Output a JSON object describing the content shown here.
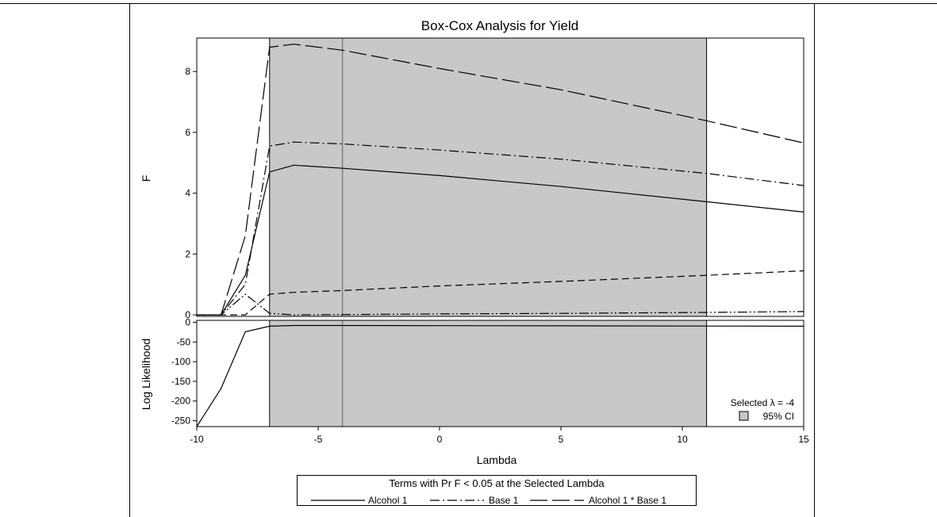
{
  "chart_data": {
    "type": "line",
    "title": "Box-Cox Analysis for Yield",
    "xlabel": "Lambda",
    "xlim": [
      -10,
      15
    ],
    "x_ticks": [
      -10,
      -5,
      0,
      5,
      10,
      15
    ],
    "ci": [
      -7,
      11
    ],
    "selected_lambda": -4,
    "colors": {
      "ci_fill": "#c8c8c8",
      "line": "#000000",
      "selected_line": "#808080"
    },
    "panels": [
      {
        "ylabel": "F",
        "ylim": [
          -0.05,
          9.1
        ],
        "y_ticks": [
          0,
          2,
          4,
          6,
          8
        ],
        "series": [
          {
            "dash": "solid",
            "points": [
              [
                -10,
                0
              ],
              [
                -9,
                0
              ],
              [
                -8,
                1.3
              ],
              [
                -7,
                4.7
              ],
              [
                -6,
                4.92
              ],
              [
                -4,
                4.82
              ],
              [
                0,
                4.58
              ],
              [
                5,
                4.22
              ],
              [
                11,
                3.72
              ],
              [
                15,
                3.38
              ]
            ]
          },
          {
            "dash": "dashdot",
            "points": [
              [
                -10,
                0
              ],
              [
                -9,
                0
              ],
              [
                -8,
                1.0
              ],
              [
                -7,
                5.55
              ],
              [
                -6,
                5.68
              ],
              [
                -4,
                5.62
              ],
              [
                0,
                5.42
              ],
              [
                5,
                5.12
              ],
              [
                11,
                4.65
              ],
              [
                15,
                4.25
              ]
            ]
          },
          {
            "dash": "longdash",
            "points": [
              [
                -10,
                0
              ],
              [
                -9,
                0
              ],
              [
                -8,
                2.6
              ],
              [
                -7,
                8.8
              ],
              [
                -6,
                8.9
              ],
              [
                -4,
                8.7
              ],
              [
                0,
                8.1
              ],
              [
                5,
                7.4
              ],
              [
                11,
                6.38
              ],
              [
                15,
                5.65
              ]
            ]
          },
          {
            "dash": "dashed",
            "points": [
              [
                -10,
                0
              ],
              [
                -9,
                0
              ],
              [
                -8,
                0
              ],
              [
                -7,
                0.68
              ],
              [
                -6,
                0.74
              ],
              [
                -4,
                0.8
              ],
              [
                0,
                0.95
              ],
              [
                5,
                1.1
              ],
              [
                11,
                1.3
              ],
              [
                15,
                1.45
              ]
            ]
          },
          {
            "dash": "dashdotdot",
            "points": [
              [
                -10,
                0
              ],
              [
                -9,
                0
              ],
              [
                -8,
                0.68
              ],
              [
                -7,
                0.05
              ],
              [
                -6,
                0
              ],
              [
                -4,
                0.01
              ],
              [
                0,
                0.03
              ],
              [
                5,
                0.05
              ],
              [
                11,
                0.08
              ],
              [
                15,
                0.11
              ]
            ]
          }
        ]
      },
      {
        "ylabel": "Log Likelihood",
        "ylim": [
          -265,
          5
        ],
        "y_ticks": [
          0,
          -50,
          -100,
          -150,
          -200,
          -250
        ],
        "series": [
          {
            "dash": "solid",
            "points": [
              [
                -10,
                -265
              ],
              [
                -9,
                -168
              ],
              [
                -8,
                -24
              ],
              [
                -7,
                -10
              ],
              [
                -6,
                -8
              ],
              [
                -4,
                -8
              ],
              [
                0,
                -8.5
              ],
              [
                5,
                -9
              ],
              [
                11,
                -9.5
              ],
              [
                15,
                -10
              ]
            ]
          }
        ]
      }
    ],
    "inset_label": "Selected λ = -4",
    "ci_legend_label": "95% CI",
    "legend": {
      "title": "Terms with Pr F < 0.05 at the Selected Lambda",
      "entries": [
        {
          "label": "Alcohol 1",
          "dash": "solid"
        },
        {
          "label": "Base 1",
          "dash": "dashdot"
        },
        {
          "label": "Alcohol 1 * Base 1",
          "dash": "longdash"
        }
      ]
    }
  }
}
